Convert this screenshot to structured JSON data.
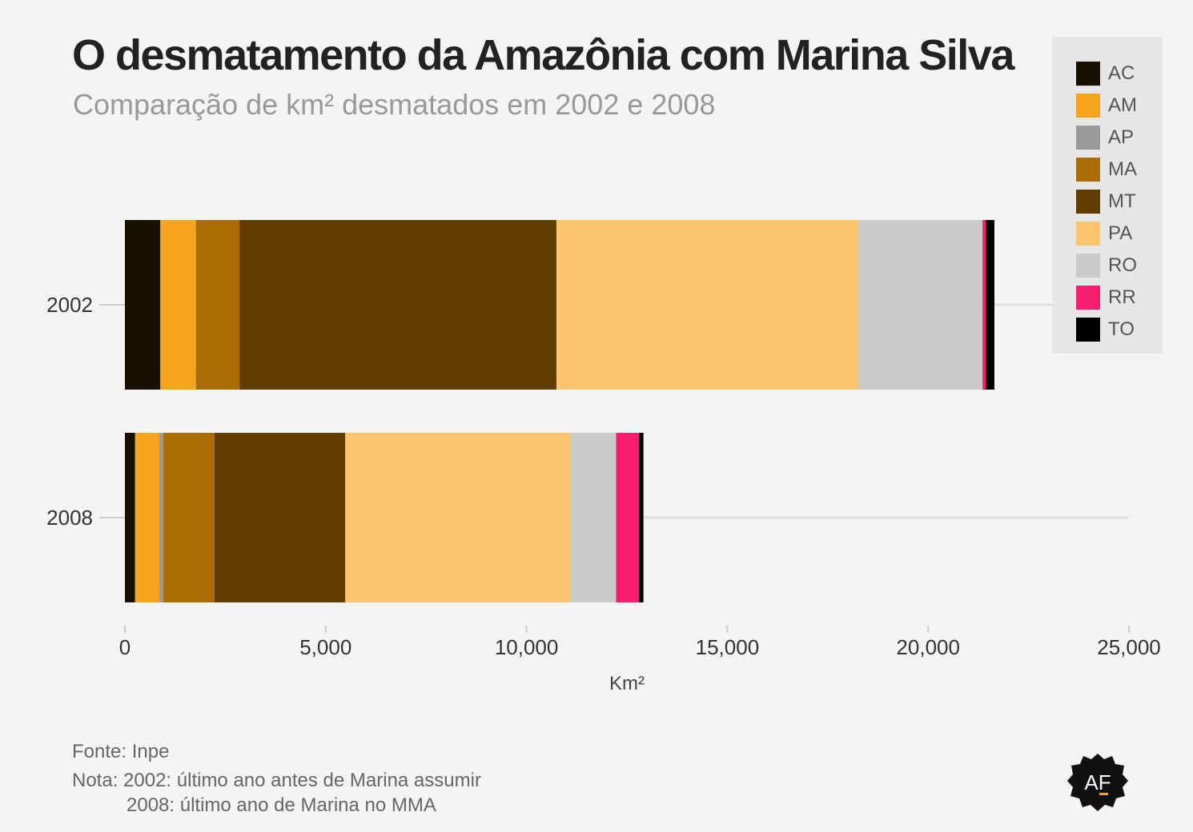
{
  "header": {
    "title": "O desmatamento da Amazônia com Marina Silva",
    "subtitle": "Comparação de km² desmatados em 2002 e 2008"
  },
  "chart_data": {
    "type": "bar",
    "orientation": "horizontal",
    "stacked": true,
    "categories": [
      "2002",
      "2008"
    ],
    "series": [
      {
        "name": "AC",
        "color": "#1a1000",
        "values": [
          883,
          254
        ]
      },
      {
        "name": "AM",
        "color": "#f7a51e",
        "values": [
          885,
          604
        ]
      },
      {
        "name": "AP",
        "color": "#999999",
        "values": [
          0,
          100
        ]
      },
      {
        "name": "MA",
        "color": "#ab6b05",
        "values": [
          1085,
          1271
        ]
      },
      {
        "name": "MT",
        "color": "#613e00",
        "values": [
          7892,
          3258
        ]
      },
      {
        "name": "PA",
        "color": "#fcc46d",
        "values": [
          7510,
          5607
        ]
      },
      {
        "name": "RO",
        "color": "#cacaca",
        "values": [
          3099,
          1136
        ]
      },
      {
        "name": "RR",
        "color": "#f81e6f",
        "values": [
          84,
          574
        ]
      },
      {
        "name": "TO",
        "color": "#000000",
        "values": [
          212,
          107
        ]
      }
    ],
    "xlabel": "Km²",
    "xlim": [
      0,
      25000
    ],
    "xticks": [
      0,
      5000,
      10000,
      15000,
      20000,
      25000
    ],
    "xtick_labels": [
      "0",
      "5,000",
      "10,000",
      "15,000",
      "20,000",
      "25,000"
    ],
    "legend_position": "top-right"
  },
  "footer": {
    "source": "Fonte: Inpe",
    "note_line1": "Nota: 2002: último ano antes de Marina assumir",
    "note_line2": "2008: último ano de Marina no MMA",
    "logo_text": "AF"
  }
}
